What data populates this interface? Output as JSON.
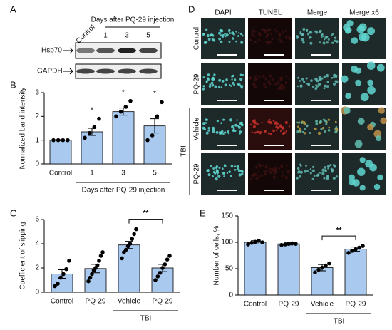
{
  "panel_labels": [
    "A",
    "B",
    "C",
    "D",
    "E"
  ],
  "blot": {
    "header": "Days after PQ-29 injection",
    "lanes": [
      "Control",
      "1",
      "3",
      "5"
    ],
    "proteins": [
      "Hsp70",
      "GAPDH"
    ]
  },
  "images": {
    "columns": [
      "DAPI",
      "TUNEL",
      "Merge",
      "Merge x6"
    ],
    "rows": [
      "Control",
      "PQ-29",
      "Vehicle",
      "PQ-29"
    ],
    "group": "TBI"
  },
  "chart_data": [
    {
      "type": "bar",
      "ylabel": "Normalized band intensity",
      "categories": [
        "Control",
        "1",
        "3",
        "5"
      ],
      "values": [
        1.0,
        1.35,
        2.2,
        1.6
      ],
      "errors": [
        0.02,
        0.15,
        0.15,
        0.3
      ],
      "points": [
        [
          1.0,
          1.0,
          1.0,
          1.0
        ],
        [
          1.1,
          1.3,
          1.55,
          1.9
        ],
        [
          2.0,
          2.2,
          2.4,
          2.65
        ],
        [
          1.0,
          1.2,
          2.0,
          2.6
        ]
      ],
      "stars": [
        null,
        "*",
        "*",
        "*"
      ],
      "group_label": "Days after PQ-29 injection",
      "color": "#a9c9ee",
      "ylim": [
        0,
        3
      ],
      "yticks": [
        0,
        1,
        2,
        3
      ]
    },
    {
      "type": "bar",
      "ylabel": "Coefficient of slipping",
      "categories": [
        "Control",
        "PQ-29",
        "Vehicle",
        "PQ-29"
      ],
      "values": [
        1.5,
        1.95,
        3.9,
        2.0
      ],
      "errors": [
        0.35,
        0.35,
        0.3,
        0.3
      ],
      "points": [
        [
          0.5,
          0.7,
          1.2,
          1.5,
          1.9,
          2.6
        ],
        [
          0.9,
          1.2,
          1.5,
          1.8,
          2.0,
          2.2,
          2.6,
          3.0,
          3.3
        ],
        [
          2.8,
          3.3,
          3.5,
          3.8,
          4.0,
          4.4,
          4.8,
          5.2
        ],
        [
          1.0,
          1.3,
          1.6,
          2.0,
          2.3,
          2.7,
          3.0
        ]
      ],
      "bracket_label": "**",
      "group_label": "TBI",
      "color": "#a9c9ee",
      "ylim": [
        0,
        6
      ],
      "yticks": [
        0,
        2,
        4,
        6
      ]
    },
    {
      "type": "bar",
      "ylabel": "Number of cells, %",
      "categories": [
        "Control",
        "PQ-29",
        "Vehicle",
        "PQ-29"
      ],
      "values": [
        100,
        97,
        52,
        87
      ],
      "errors": [
        3,
        2,
        6,
        4
      ],
      "points": [
        [
          96,
          99,
          101,
          103,
          100
        ],
        [
          95,
          96,
          97,
          98,
          97
        ],
        [
          43,
          48,
          52,
          56,
          60
        ],
        [
          80,
          84,
          87,
          90,
          93
        ]
      ],
      "bracket_label": "**",
      "group_label": "TBI",
      "color": "#a9c9ee",
      "ylim": [
        0,
        150
      ],
      "yticks": [
        0,
        50,
        100,
        150
      ]
    }
  ]
}
